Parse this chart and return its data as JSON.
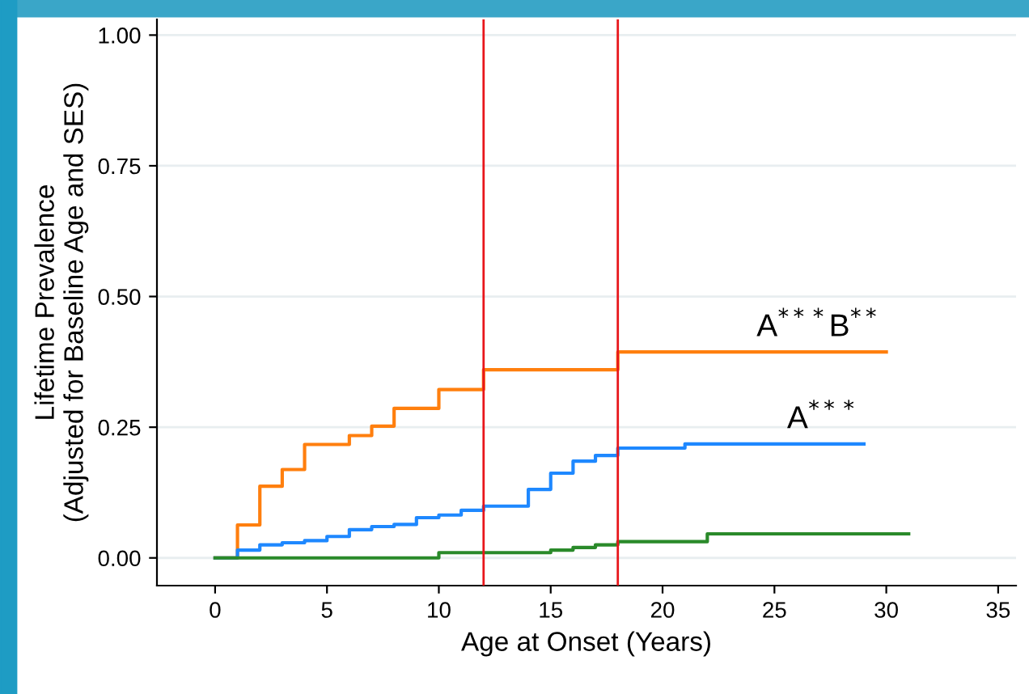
{
  "chart_data": {
    "type": "step",
    "xlabel": "Age at Onset (Years)",
    "ylabel": "Lifetime Prevalence\n(Adjusted for Baseline Age and SES)",
    "xlim": [
      -2.6,
      35.8
    ],
    "ylim": [
      -0.053,
      1.03
    ],
    "xticks": [
      0,
      5,
      10,
      15,
      20,
      25,
      30,
      35
    ],
    "yticks": [
      {
        "value": 0,
        "label": "0.00"
      },
      {
        "value": 0.25,
        "label": "0.25"
      },
      {
        "value": 0.5,
        "label": "0.50"
      },
      {
        "value": 0.75,
        "label": "0.75"
      },
      {
        "value": 1,
        "label": "1.00"
      }
    ],
    "grid": "y",
    "legend": false,
    "series": [
      {
        "color": "#ff7f0e",
        "x": [
          0,
          1,
          2,
          3,
          4,
          6,
          7,
          8,
          10,
          12,
          18,
          30
        ],
        "values": [
          0,
          0.063,
          0.137,
          0.169,
          0.217,
          0.234,
          0.252,
          0.286,
          0.322,
          0.36,
          0.394,
          0.394
        ]
      },
      {
        "color": "#1e88ff",
        "x": [
          0,
          1,
          2,
          3,
          4,
          5,
          6,
          7,
          8,
          9,
          10,
          11,
          12,
          14,
          15,
          16,
          17,
          18,
          21,
          29
        ],
        "values": [
          0,
          0.015,
          0.025,
          0.029,
          0.033,
          0.041,
          0.054,
          0.06,
          0.064,
          0.077,
          0.082,
          0.091,
          0.099,
          0.131,
          0.162,
          0.185,
          0.196,
          0.21,
          0.218,
          0.218
        ]
      },
      {
        "color": "#2a8a2a",
        "x": [
          0,
          10,
          15,
          16,
          17,
          18,
          22,
          31
        ],
        "values": [
          0,
          0.01,
          0.015,
          0.02,
          0.025,
          0.031,
          0.046,
          0.046
        ]
      }
    ],
    "ref_lines": [
      {
        "axis": "x",
        "value": 12,
        "color": "#e8161b"
      },
      {
        "axis": "x",
        "value": 18,
        "color": "#e8161b"
      }
    ],
    "annotations": [
      "A$^{***}$B$^{**}$",
      "A$^{***}$"
    ]
  }
}
